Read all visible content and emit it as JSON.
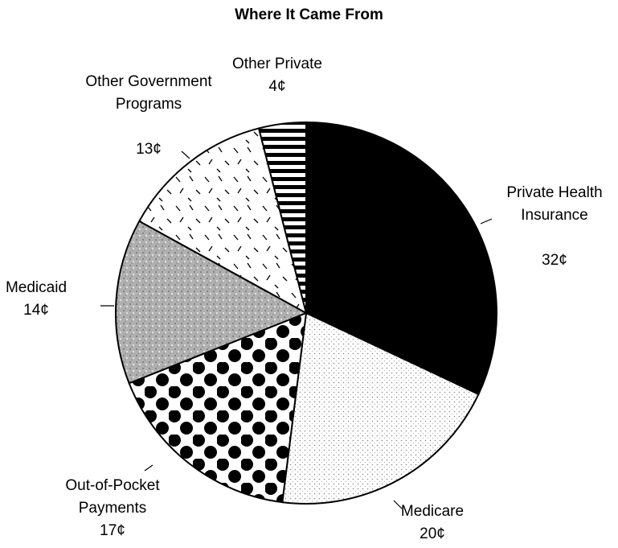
{
  "chart_data": {
    "type": "pie",
    "title": "Where It Came From",
    "categories": [
      "Private Health Insurance",
      "Medicare",
      "Out-of-Pocket Payments",
      "Medicaid",
      "Other Government Programs",
      "Other Private"
    ],
    "values": [
      32,
      20,
      17,
      14,
      13,
      4
    ],
    "value_labels": [
      "32¢",
      "20¢",
      "17¢",
      "14¢",
      "13¢",
      "4¢"
    ],
    "fills": [
      "solid",
      "stipple",
      "dots",
      "mottled",
      "dashes",
      "stripes"
    ],
    "start_angle": 90,
    "direction": "clockwise"
  }
}
